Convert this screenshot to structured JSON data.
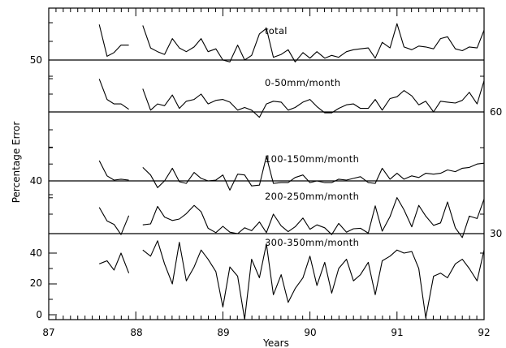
{
  "chart_data": {
    "type": "line",
    "xlabel": "Years",
    "ylabel": "Percentage Error",
    "xlim": [
      87,
      92
    ],
    "x_ticks": [
      "87",
      "88",
      "89",
      "90",
      "91",
      "92"
    ],
    "left_tick_labels": [
      "0",
      "20",
      "40",
      "40",
      "50"
    ],
    "right_tick_labels": [
      "30",
      "60"
    ],
    "series": [
      {
        "name": "total",
        "baseline": 50,
        "segments": [
          {
            "x": [
              87.58,
              87.67,
              87.75,
              87.83,
              87.92
            ],
            "y": [
              53.8,
              50.4,
              50.8,
              51.6,
              51.6
            ]
          },
          {
            "x": [
              88.08,
              88.17,
              88.25,
              88.33,
              88.42,
              88.5,
              88.58,
              88.67,
              88.75,
              88.83,
              88.92,
              89.0,
              89.08,
              89.17,
              89.25,
              89.33,
              89.42,
              89.5,
              89.58,
              89.67,
              89.75,
              89.83,
              89.92,
              90.0,
              90.08,
              90.17,
              90.25,
              90.33,
              90.42,
              90.5,
              90.58,
              90.67,
              90.75,
              90.83,
              90.92,
              91.0,
              91.08,
              91.17,
              91.25,
              91.33,
              91.42,
              91.5,
              91.58,
              91.67,
              91.75,
              91.83,
              91.92,
              92.0
            ],
            "y": [
              53.7,
              51.3,
              50.9,
              50.6,
              52.3,
              51.3,
              50.9,
              51.4,
              52.3,
              50.9,
              51.2,
              50.0,
              49.8,
              51.6,
              50.0,
              50.5,
              52.8,
              53.4,
              50.3,
              50.6,
              51.1,
              49.8,
              50.8,
              50.2,
              50.9,
              50.2,
              50.5,
              50.3,
              50.9,
              51.1,
              51.2,
              51.3,
              50.2,
              51.9,
              51.3,
              53.9,
              51.4,
              51.1,
              51.5,
              51.4,
              51.2,
              52.3,
              52.5,
              51.2,
              51.0,
              51.4,
              51.3,
              53.2
            ]
          }
        ]
      },
      {
        "name": "0-50mm/month",
        "baseline": 60,
        "segments": [
          {
            "x": [
              87.58,
              87.67,
              87.75,
              87.83,
              87.92
            ],
            "y": [
              63.7,
              61.4,
              60.9,
              60.9,
              60.3
            ]
          },
          {
            "x": [
              88.08,
              88.17,
              88.25,
              88.33,
              88.42,
              88.5,
              88.58,
              88.67,
              88.75,
              88.83,
              88.92,
              89.0,
              89.08,
              89.17,
              89.25,
              89.33,
              89.42,
              89.5,
              89.58,
              89.67,
              89.75,
              89.83,
              89.92,
              90.0,
              90.08,
              90.17,
              90.25,
              90.33,
              90.42,
              90.5,
              90.58,
              90.67,
              90.75,
              90.83,
              90.92,
              91.0,
              91.08,
              91.17,
              91.25,
              91.33,
              91.42,
              91.5,
              91.58,
              91.67,
              91.75,
              91.83,
              91.92,
              92.0
            ],
            "y": [
              62.6,
              60.2,
              60.9,
              60.7,
              61.9,
              60.4,
              61.2,
              61.4,
              62.0,
              60.9,
              61.3,
              61.4,
              61.1,
              60.2,
              60.5,
              60.2,
              59.4,
              60.9,
              61.2,
              61.1,
              60.2,
              60.5,
              61.1,
              61.4,
              60.6,
              59.9,
              59.9,
              60.4,
              60.8,
              60.9,
              60.4,
              60.4,
              61.4,
              60.2,
              61.5,
              61.7,
              62.4,
              61.8,
              60.8,
              61.2,
              60.0,
              61.2,
              61.1,
              61.0,
              61.3,
              62.2,
              60.9,
              63.5
            ]
          }
        ]
      },
      {
        "name": "100-150mm/month",
        "baseline": 40,
        "segments": [
          {
            "x": [
              87.58,
              87.67,
              87.75,
              87.83,
              87.92
            ],
            "y": [
              42.4,
              40.6,
              40.1,
              40.2,
              40.1
            ]
          },
          {
            "x": [
              88.08,
              88.17,
              88.25,
              88.33,
              88.42,
              88.5,
              88.58,
              88.67,
              88.75,
              88.83,
              88.92,
              89.0,
              89.08,
              89.17,
              89.25,
              89.33,
              89.42,
              89.5,
              89.58,
              89.67,
              89.75,
              89.83,
              89.92,
              90.0,
              90.08,
              90.17,
              90.25,
              90.33,
              90.42,
              90.5,
              90.58,
              90.67,
              90.75,
              90.83,
              90.92,
              91.0,
              91.08,
              91.17,
              91.25,
              91.33,
              91.42,
              91.5,
              91.58,
              91.67,
              91.75,
              91.83,
              91.92,
              92.0
            ],
            "y": [
              41.6,
              40.7,
              39.2,
              40.0,
              41.5,
              39.9,
              39.7,
              41.0,
              40.3,
              40.0,
              40.1,
              40.7,
              38.9,
              40.8,
              40.7,
              39.4,
              39.5,
              42.9,
              39.7,
              39.8,
              39.8,
              40.4,
              40.7,
              39.8,
              40.0,
              39.8,
              39.8,
              40.2,
              40.1,
              40.3,
              40.5,
              39.8,
              39.7,
              41.5,
              40.2,
              40.9,
              40.2,
              40.6,
              40.4,
              40.9,
              40.8,
              40.9,
              41.3,
              41.1,
              41.5,
              41.6,
              42.0,
              42.1
            ]
          }
        ]
      },
      {
        "name": "200-250mm/month",
        "baseline": 30,
        "segments": [
          {
            "x": [
              87.58,
              87.67,
              87.75,
              87.83,
              87.92
            ],
            "y": [
              35.4,
              32.6,
              31.9,
              29.8,
              33.7
            ]
          },
          {
            "x": [
              88.08,
              88.17,
              88.25,
              88.33,
              88.42,
              88.5,
              88.58,
              88.67,
              88.75,
              88.83,
              88.92,
              89.0,
              89.08,
              89.17,
              89.25,
              89.33,
              89.42,
              89.5,
              89.58,
              89.67,
              89.75,
              89.83,
              89.92,
              90.0,
              90.08,
              90.17,
              90.25,
              90.33,
              90.42,
              90.5,
              90.58,
              90.67,
              90.75,
              90.83,
              90.92,
              91.0,
              91.08,
              91.17,
              91.25,
              91.33,
              91.42,
              91.5,
              91.58,
              91.67,
              91.75,
              91.83,
              91.92,
              92.0
            ],
            "y": [
              31.8,
              32.0,
              35.6,
              33.4,
              32.7,
              33.0,
              34.1,
              35.8,
              34.5,
              31.1,
              30.2,
              31.5,
              30.3,
              30.0,
              31.2,
              30.6,
              32.4,
              30.2,
              34.0,
              31.6,
              30.4,
              31.4,
              33.2,
              30.9,
              31.8,
              31.2,
              29.8,
              32.1,
              30.3,
              31.0,
              31.1,
              30.1,
              35.7,
              30.5,
              33.5,
              37.4,
              34.9,
              31.4,
              35.8,
              33.6,
              31.7,
              32.2,
              36.5,
              31.2,
              29.2,
              33.6,
              33.1,
              37.1
            ]
          }
        ]
      },
      {
        "name": "300-350mm/month",
        "baseline": 0,
        "segments": [
          {
            "x": [
              87.58,
              87.67,
              87.75,
              87.83,
              87.92
            ],
            "y": [
              33,
              35,
              29,
              40,
              27
            ]
          },
          {
            "x": [
              88.08,
              88.17,
              88.25,
              88.33,
              88.42,
              88.5,
              88.58,
              88.67,
              88.75,
              88.83,
              88.92,
              89.0,
              89.08,
              89.17,
              89.25,
              89.33,
              89.42,
              89.5,
              89.58,
              89.67,
              89.75,
              89.83,
              89.92,
              90.0,
              90.08,
              90.17,
              90.25,
              90.33,
              90.42,
              90.5,
              90.58,
              90.67,
              90.75,
              90.83,
              90.92,
              91.0,
              91.08,
              91.17,
              91.25,
              91.33,
              91.42,
              91.5,
              91.58,
              91.67,
              91.75,
              91.83,
              91.92,
              92.0
            ],
            "y": [
              42,
              38,
              48,
              33,
              20,
              47,
              22,
              31,
              42,
              36,
              28,
              5,
              31,
              25,
              -3,
              36,
              24,
              46,
              13,
              26,
              8,
              17,
              24,
              38,
              19,
              34,
              14,
              30,
              36,
              22,
              26,
              34,
              13,
              35,
              38,
              42,
              40,
              41,
              30,
              -2,
              25,
              27,
              24,
              33,
              36,
              30,
              22,
              42
            ]
          }
        ]
      }
    ],
    "annotations": [
      "total",
      "0-50mm/month",
      "100-150mm/month",
      "200-250mm/month",
      "300-350mm/month"
    ]
  }
}
